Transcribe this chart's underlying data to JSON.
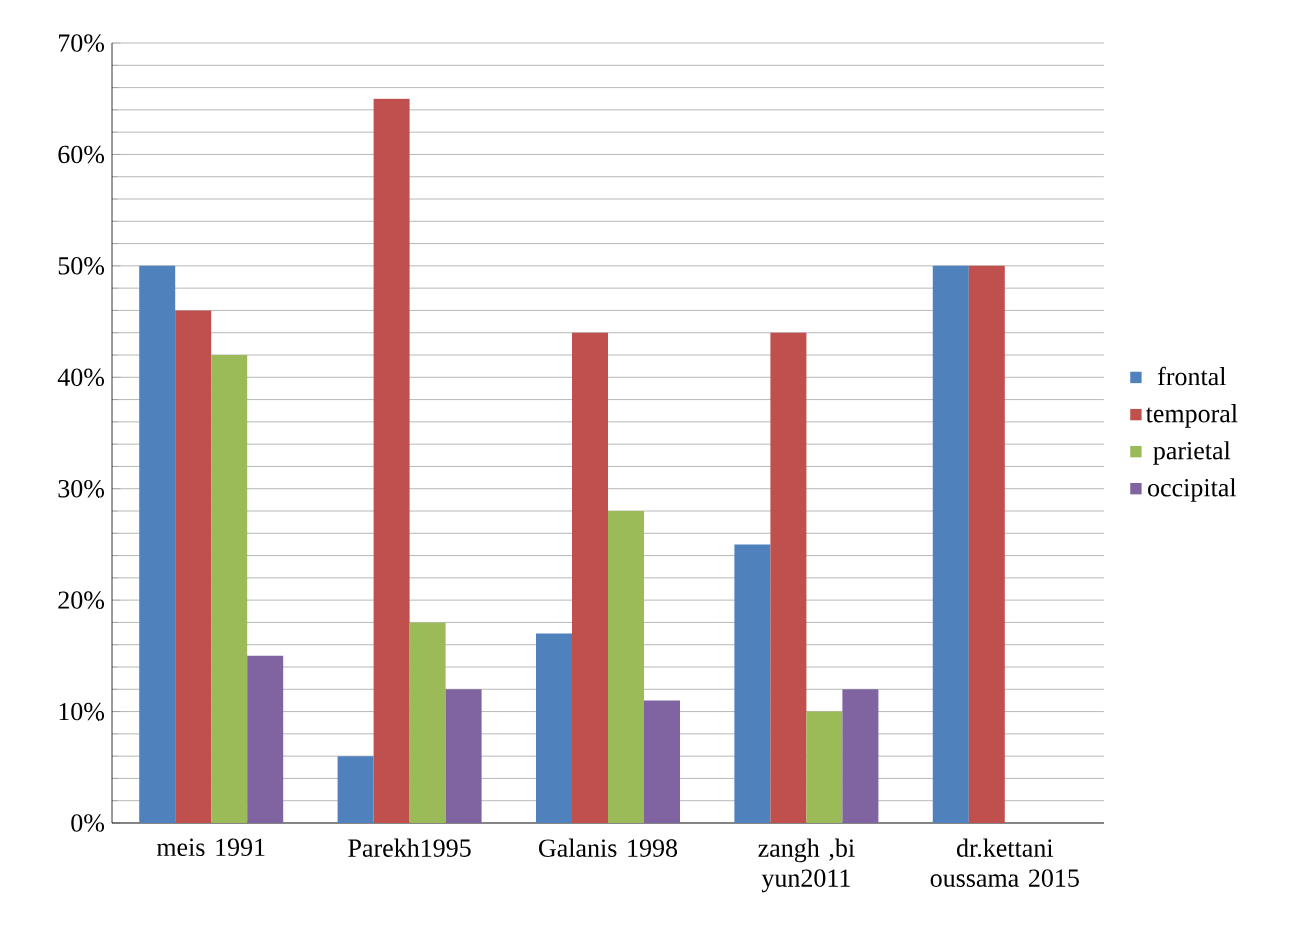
{
  "chart_data": {
    "type": "bar",
    "categories": [
      "meis 1991",
      "Parekh1995",
      "Galanis 1998",
      "zangh ,bi yun2011",
      "dr.kettani oussama 2015"
    ],
    "series": [
      {
        "name": "frontal",
        "color": "#4f81bd",
        "values": [
          50,
          6,
          17,
          25,
          50
        ]
      },
      {
        "name": "temporal",
        "color": "#c0504d",
        "values": [
          46,
          65,
          44,
          44,
          50
        ]
      },
      {
        "name": "parietal",
        "color": "#9bbb59",
        "values": [
          42,
          18,
          28,
          10,
          null
        ]
      },
      {
        "name": "occipital",
        "color": "#8064a2",
        "values": [
          15,
          12,
          11,
          12,
          null
        ]
      }
    ],
    "ylim": [
      0,
      70
    ],
    "yticks": [
      {
        "value": 0,
        "label": "0%"
      },
      {
        "value": 10,
        "label": "10%"
      },
      {
        "value": 20,
        "label": "20%"
      },
      {
        "value": 30,
        "label": "30%"
      },
      {
        "value": 40,
        "label": "40%"
      },
      {
        "value": 50,
        "label": "50%"
      },
      {
        "value": 60,
        "label": "60%"
      },
      {
        "value": 70,
        "label": "70%"
      }
    ],
    "grid": "y",
    "legend": "right"
  }
}
